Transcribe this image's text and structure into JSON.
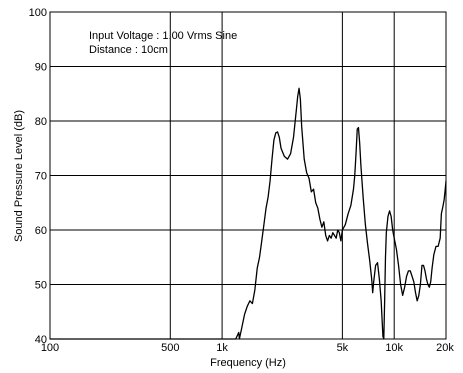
{
  "chart_data": {
    "type": "line",
    "title": "",
    "annotations": [
      "Input Voltage : 1.00 Vrms Sine",
      "Distance : 10cm"
    ],
    "xlabel": "Frequency (Hz)",
    "ylabel": "Sound Pressure Level (dB)",
    "x_scale": "log",
    "xlim": [
      100,
      20000
    ],
    "ylim": [
      40,
      100
    ],
    "grid": true,
    "x_ticks": [
      {
        "value": 100,
        "label": "100"
      },
      {
        "value": 500,
        "label": "500"
      },
      {
        "value": 1000,
        "label": "1k"
      },
      {
        "value": 5000,
        "label": "5k"
      },
      {
        "value": 10000,
        "label": "10k"
      },
      {
        "value": 20000,
        "label": "20k"
      }
    ],
    "y_ticks": [
      {
        "value": 40,
        "label": "40"
      },
      {
        "value": 50,
        "label": "50"
      },
      {
        "value": 60,
        "label": "60"
      },
      {
        "value": 70,
        "label": "70"
      },
      {
        "value": 80,
        "label": "80"
      },
      {
        "value": 90,
        "label": "90"
      },
      {
        "value": 100,
        "label": "100"
      }
    ],
    "series": [
      {
        "color": "#000000",
        "points": [
          [
            100,
            40.0
          ],
          [
            1000,
            40.0
          ],
          [
            1200,
            40.0
          ],
          [
            1250,
            41.2
          ],
          [
            1260,
            40.0
          ],
          [
            1300,
            42.0
          ],
          [
            1350,
            44.5
          ],
          [
            1400,
            46.0
          ],
          [
            1450,
            47.0
          ],
          [
            1500,
            46.5
          ],
          [
            1550,
            49.0
          ],
          [
            1600,
            53.0
          ],
          [
            1650,
            55.0
          ],
          [
            1700,
            58.0
          ],
          [
            1750,
            61.0
          ],
          [
            1800,
            64.0
          ],
          [
            1850,
            66.0
          ],
          [
            1900,
            69.0
          ],
          [
            1950,
            73.0
          ],
          [
            2000,
            76.5
          ],
          [
            2050,
            77.8
          ],
          [
            2100,
            78.0
          ],
          [
            2150,
            77.0
          ],
          [
            2200,
            75.0
          ],
          [
            2300,
            73.5
          ],
          [
            2400,
            73.0
          ],
          [
            2500,
            74.0
          ],
          [
            2600,
            77.0
          ],
          [
            2700,
            82.0
          ],
          [
            2750,
            84.5
          ],
          [
            2800,
            86.0
          ],
          [
            2850,
            84.0
          ],
          [
            2900,
            79.0
          ],
          [
            3000,
            73.0
          ],
          [
            3100,
            70.5
          ],
          [
            3200,
            69.5
          ],
          [
            3300,
            67.0
          ],
          [
            3400,
            67.5
          ],
          [
            3500,
            65.0
          ],
          [
            3600,
            64.0
          ],
          [
            3700,
            62.0
          ],
          [
            3800,
            60.5
          ],
          [
            3900,
            61.5
          ],
          [
            4000,
            59.0
          ],
          [
            4100,
            58.0
          ],
          [
            4200,
            59.0
          ],
          [
            4300,
            58.5
          ],
          [
            4400,
            59.5
          ],
          [
            4500,
            59.0
          ],
          [
            4600,
            58.5
          ],
          [
            4700,
            60.0
          ],
          [
            4800,
            59.5
          ],
          [
            4900,
            58.0
          ],
          [
            5000,
            60.0
          ],
          [
            5200,
            61.0
          ],
          [
            5400,
            63.0
          ],
          [
            5600,
            64.5
          ],
          [
            5800,
            67.5
          ],
          [
            5900,
            70.0
          ],
          [
            6000,
            74.0
          ],
          [
            6100,
            78.5
          ],
          [
            6200,
            78.8
          ],
          [
            6300,
            76.0
          ],
          [
            6400,
            72.0
          ],
          [
            6600,
            66.0
          ],
          [
            6800,
            61.0
          ],
          [
            7000,
            57.5
          ],
          [
            7200,
            54.5
          ],
          [
            7400,
            51.0
          ],
          [
            7500,
            48.5
          ],
          [
            7600,
            50.5
          ],
          [
            7800,
            53.5
          ],
          [
            8000,
            54.0
          ],
          [
            8200,
            51.0
          ],
          [
            8400,
            47.0
          ],
          [
            8600,
            40.5
          ],
          [
            8700,
            40.0
          ],
          [
            8800,
            47.0
          ],
          [
            8900,
            55.0
          ],
          [
            9000,
            59.5
          ],
          [
            9200,
            62.5
          ],
          [
            9400,
            63.5
          ],
          [
            9600,
            62.5
          ],
          [
            9800,
            60.0
          ],
          [
            10000,
            58.5
          ],
          [
            10300,
            56.5
          ],
          [
            10600,
            53.5
          ],
          [
            10900,
            50.0
          ],
          [
            11200,
            48.0
          ],
          [
            11500,
            49.5
          ],
          [
            11800,
            51.5
          ],
          [
            12100,
            52.5
          ],
          [
            12400,
            52.5
          ],
          [
            12700,
            51.5
          ],
          [
            13000,
            50.5
          ],
          [
            13300,
            48.5
          ],
          [
            13600,
            47.0
          ],
          [
            13900,
            48.0
          ],
          [
            14200,
            50.0
          ],
          [
            14500,
            53.5
          ],
          [
            14800,
            53.5
          ],
          [
            15100,
            52.5
          ],
          [
            15400,
            51.0
          ],
          [
            15700,
            50.0
          ],
          [
            16000,
            49.5
          ],
          [
            16300,
            50.5
          ],
          [
            16600,
            53.0
          ],
          [
            17000,
            55.5
          ],
          [
            17500,
            57.0
          ],
          [
            18000,
            57.0
          ],
          [
            18500,
            58.5
          ],
          [
            18800,
            63.0
          ],
          [
            19100,
            64.0
          ],
          [
            19500,
            65.5
          ],
          [
            19800,
            67.5
          ],
          [
            20000,
            69.0
          ]
        ]
      }
    ]
  }
}
